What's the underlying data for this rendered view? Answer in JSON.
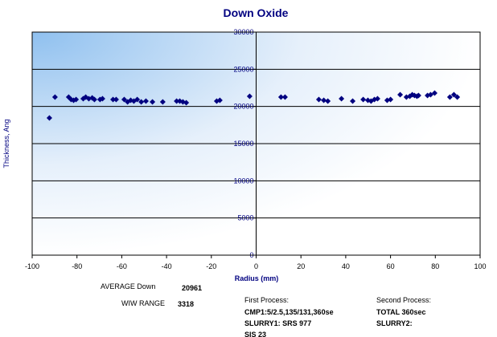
{
  "chart_data": {
    "type": "scatter",
    "title": "Down Oxide",
    "x_label": "Radius (mm)",
    "y_label": "Thickness, Ang",
    "color": "#000080",
    "grid": true,
    "xlim": [
      -100,
      100
    ],
    "xticks": [
      -100,
      -80,
      -60,
      -40,
      -20,
      0,
      20,
      40,
      60,
      80,
      100
    ],
    "ylim": [
      0,
      30000
    ],
    "yticks": [
      0,
      5000,
      10000,
      15000,
      20000,
      25000,
      30000
    ],
    "x": [
      -92.3,
      -89.8,
      -83.7,
      -82.6,
      -81.5,
      -80.4,
      -77.2,
      -76.1,
      -74.7,
      -73.2,
      -72.2,
      -69.7,
      -68.6,
      -63.9,
      -62.5,
      -58.9,
      -57.4,
      -56.0,
      -54.6,
      -53.1,
      -51.3,
      -49.2,
      -46.3,
      -41.7,
      -35.5,
      -34.1,
      -32.7,
      -31.2,
      -17.6,
      -16.2,
      -2.9,
      11.1,
      12.9,
      28.0,
      30.2,
      32.0,
      38.1,
      43.1,
      47.8,
      49.9,
      51.3,
      52.8,
      54.2,
      58.5,
      60.0,
      64.3,
      67.1,
      68.6,
      69.7,
      70.7,
      71.8,
      72.5,
      76.5,
      77.9,
      79.7,
      86.5,
      88.3,
      89.8
    ],
    "y": [
      18450,
      21260,
      21260,
      20930,
      20830,
      20930,
      21040,
      21260,
      21040,
      21150,
      20930,
      20930,
      21040,
      20930,
      20930,
      20930,
      20610,
      20830,
      20720,
      20930,
      20610,
      20720,
      20610,
      20610,
      20720,
      20720,
      20610,
      20500,
      20720,
      20830,
      21370,
      21260,
      21260,
      20930,
      20830,
      20720,
      21040,
      20720,
      20930,
      20830,
      20720,
      20930,
      21040,
      20830,
      20930,
      21580,
      21260,
      21370,
      21580,
      21480,
      21370,
      21480,
      21480,
      21580,
      21800,
      21260,
      21580,
      21260
    ]
  },
  "stats": [
    {
      "label": "AVERAGE Down",
      "value": 20961
    },
    {
      "label": "WIW RANGE",
      "value": 3318
    }
  ],
  "first_process": {
    "heading": "First Process:",
    "lines": [
      "CMP1:5/2.5,135/131,360se",
      "SLURRY1: SRS 977",
      "SIS 23"
    ]
  },
  "second_process": {
    "heading": "Second Process:",
    "lines": [
      "TOTAL 360sec",
      "SLURRY2:"
    ]
  }
}
